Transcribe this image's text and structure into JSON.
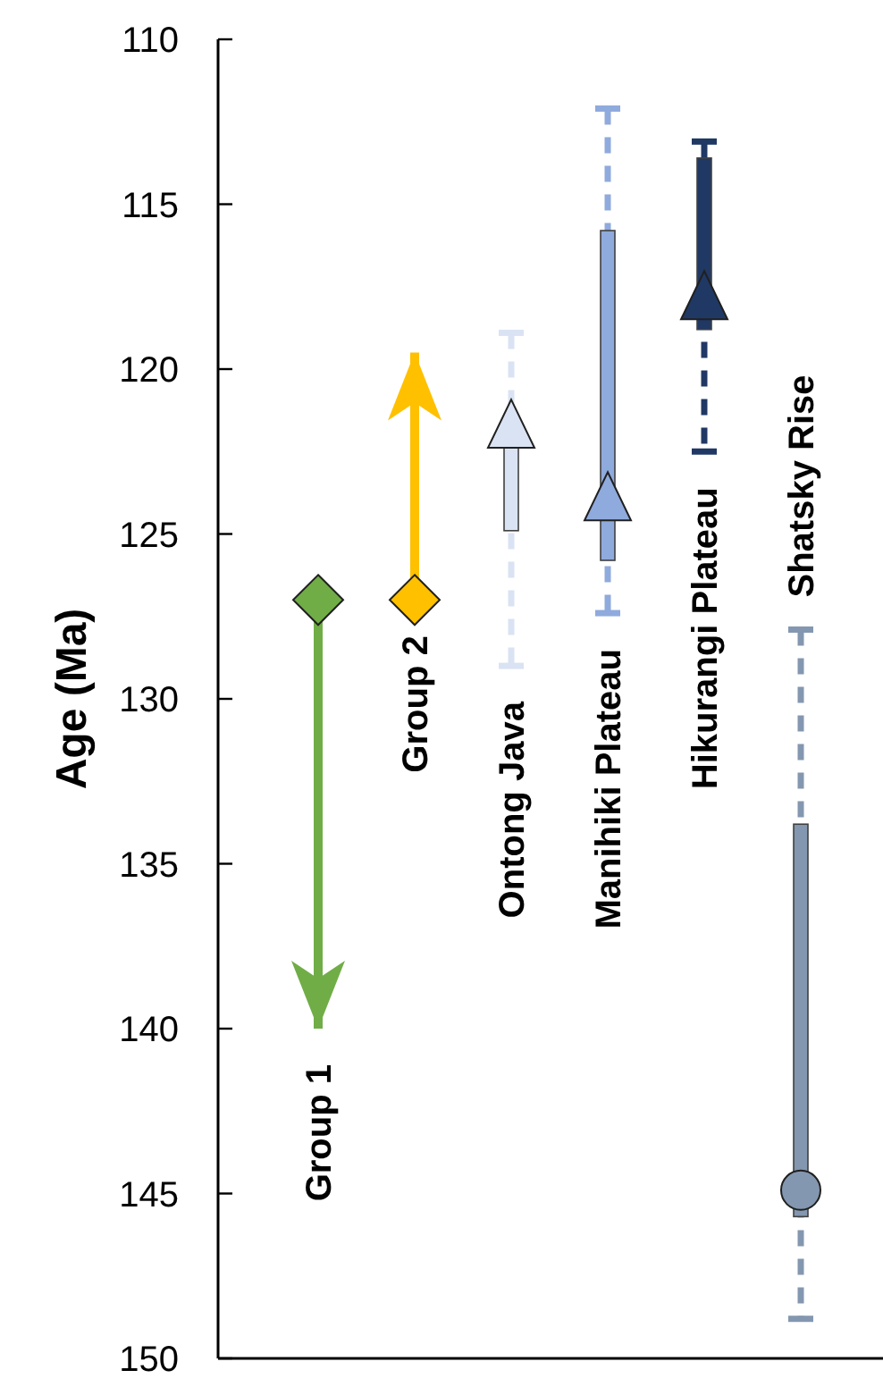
{
  "chart_data": {
    "type": "scatter",
    "ylabel": "Age (Ma)",
    "categories": [
      "Group 1",
      "Group 2",
      "Ontong Java",
      "Manihiki Plateau",
      "Hikurangi Plateau",
      "Shatsky Rise"
    ],
    "ylim": [
      150,
      110
    ],
    "yticks": [
      110,
      115,
      120,
      125,
      130,
      135,
      140,
      145,
      150
    ],
    "series": [
      {
        "type": "bar",
        "values": [
          null,
          null,
          2.9,
          10,
          5.2,
          11.9
        ],
        "base": [
          null,
          null,
          122,
          115.8,
          113.6,
          133.8
        ],
        "colors": [
          null,
          null,
          "#dae3f3",
          "#8faadc",
          "#203864",
          "#8497b0"
        ]
      },
      {
        "marker": "diamond",
        "line_style": "solid",
        "values": [
          127,
          127,
          null,
          null,
          null,
          null
        ],
        "errors": [
          [
            127,
            140
          ],
          [
            119.5,
            127
          ],
          null,
          null,
          null,
          null
        ],
        "colors": [
          "#70ad47",
          "#ffc000",
          null,
          null,
          null,
          null
        ]
      },
      {
        "marker": "triangle",
        "line_style": "dashed",
        "values": [
          null,
          null,
          121.9,
          124.1,
          118,
          null
        ],
        "errors": [
          null,
          null,
          [
            118.9,
            129
          ],
          [
            112.1,
            127.4
          ],
          [
            113.1,
            122.5
          ],
          null
        ],
        "colors": [
          null,
          null,
          "#dae3f3",
          "#8faadc",
          "#203864",
          null
        ]
      },
      {
        "marker": "circle",
        "line_style": "dashed",
        "values": [
          null,
          null,
          null,
          null,
          null,
          144.9
        ],
        "errors": [
          null,
          null,
          null,
          null,
          null,
          [
            127.9,
            148.8
          ]
        ],
        "colors": [
          null,
          null,
          null,
          null,
          null,
          "#8497b0"
        ]
      }
    ]
  }
}
